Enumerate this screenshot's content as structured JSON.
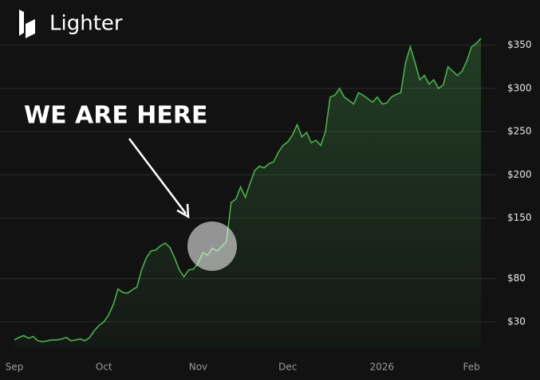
{
  "chart_data": {
    "type": "area",
    "title": "Lighter",
    "annotation": "WE ARE HERE",
    "categories": [
      "Sep",
      null,
      null,
      null,
      null,
      null,
      null,
      null,
      null,
      null,
      null,
      null,
      null,
      null,
      null,
      null,
      null,
      null,
      null,
      "Oct",
      null,
      null,
      null,
      null,
      null,
      null,
      null,
      null,
      null,
      null,
      null,
      null,
      null,
      null,
      null,
      null,
      null,
      null,
      null,
      "Nov",
      null,
      null,
      null,
      null,
      null,
      null,
      null,
      null,
      null,
      null,
      null,
      null,
      null,
      null,
      null,
      null,
      null,
      null,
      "Dec",
      null,
      null,
      null,
      null,
      null,
      null,
      null,
      null,
      null,
      null,
      null,
      null,
      null,
      null,
      null,
      null,
      null,
      null,
      null,
      "2026",
      null,
      null,
      null,
      null,
      null,
      null,
      null,
      null,
      null,
      null,
      null,
      null,
      null,
      null,
      null,
      null,
      null,
      null,
      "Feb",
      null,
      null
    ],
    "values": [
      9,
      12,
      14,
      11,
      13,
      8,
      7,
      8,
      9,
      9,
      10,
      12,
      8,
      9,
      10,
      8,
      12,
      20,
      26,
      30,
      38,
      50,
      68,
      64,
      63,
      67,
      70,
      90,
      104,
      112,
      113,
      118,
      121,
      116,
      104,
      90,
      82,
      90,
      91,
      98,
      110,
      107,
      115,
      112,
      117,
      123,
      168,
      172,
      186,
      174,
      190,
      205,
      210,
      208,
      213,
      215,
      226,
      234,
      238,
      246,
      258,
      244,
      249,
      237,
      240,
      234,
      250,
      290,
      292,
      300,
      290,
      286,
      282,
      295,
      292,
      288,
      284,
      290,
      282,
      283,
      290,
      293,
      295,
      330,
      348,
      330,
      310,
      315,
      305,
      310,
      300,
      304,
      325,
      320,
      315,
      320,
      332,
      348,
      352,
      358
    ],
    "color": "#4caf50",
    "ylim": [
      0,
      370
    ],
    "yticks": [
      {
        "value": 30,
        "label": "$30"
      },
      {
        "value": 80,
        "label": "$80"
      },
      {
        "value": 150,
        "label": "$150"
      },
      {
        "value": 200,
        "label": "$200"
      },
      {
        "value": 250,
        "label": "$250"
      },
      {
        "value": 300,
        "label": "$300"
      },
      {
        "value": 350,
        "label": "$350"
      }
    ],
    "grid": true
  }
}
